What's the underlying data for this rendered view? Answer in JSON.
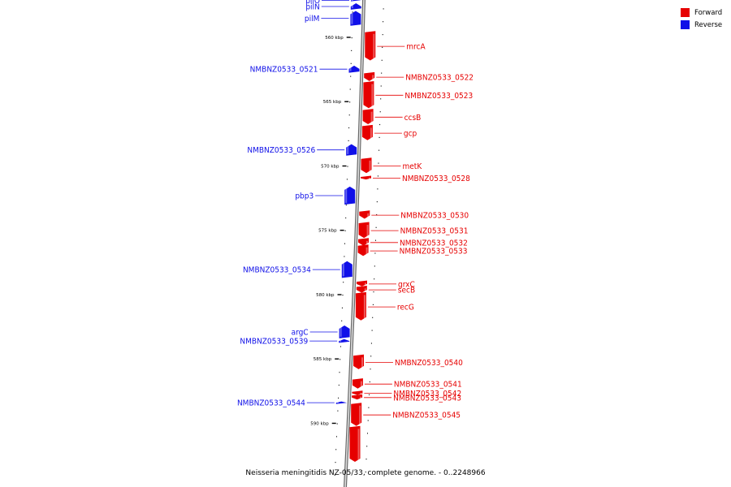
{
  "colors": {
    "forward": "#e60000",
    "reverse": "#1010e8",
    "backbone": "#888888"
  },
  "legend": [
    {
      "label": "Forward",
      "color": "#e60000"
    },
    {
      "label": "Reverse",
      "color": "#1010e8"
    }
  ],
  "caption": "Neisseria meningitidis NZ-05/33, complete genome. - 0..2248966",
  "ticks": [
    {
      "kbp": 560,
      "label": "560 kbp"
    },
    {
      "kbp": 565,
      "label": "565 kbp"
    },
    {
      "kbp": 570,
      "label": "570 kbp"
    },
    {
      "kbp": 575,
      "label": "575 kbp"
    },
    {
      "kbp": 580,
      "label": "580 kbp"
    },
    {
      "kbp": 585,
      "label": "585 kbp"
    },
    {
      "kbp": 590,
      "label": "590 kbp"
    }
  ],
  "genes": [
    {
      "name": "pilO",
      "strand": "-",
      "start": 557.05,
      "end": 557.2,
      "labelled": true
    },
    {
      "name": "pilN",
      "strand": "-",
      "start": 557.35,
      "end": 557.85,
      "labelled": true
    },
    {
      "name": "pilM",
      "strand": "-",
      "start": 557.95,
      "end": 559.1,
      "labelled": true
    },
    {
      "name": "mrcA",
      "strand": "+",
      "start": 559.6,
      "end": 561.8,
      "labelled": true
    },
    {
      "name": "NMBNZ0533_0521",
      "strand": "-",
      "start": 562.2,
      "end": 562.75,
      "labelled": true
    },
    {
      "name": "NMBNZ0533_0522",
      "strand": "+",
      "start": 562.8,
      "end": 563.4,
      "labelled": true
    },
    {
      "name": "NMBNZ0533_0523",
      "strand": "+",
      "start": 563.5,
      "end": 565.5,
      "labelled": true
    },
    {
      "name": "ccsB",
      "strand": "+",
      "start": 565.65,
      "end": 566.75,
      "labelled": true
    },
    {
      "name": "gcp",
      "strand": "+",
      "start": 566.9,
      "end": 568.0,
      "labelled": true
    },
    {
      "name": "NMBNZ0533_0526",
      "strand": "-",
      "start": 568.3,
      "end": 569.2,
      "labelled": true
    },
    {
      "name": "metK",
      "strand": "+",
      "start": 569.45,
      "end": 570.55,
      "labelled": true
    },
    {
      "name": "NMBNZ0533_0528",
      "strand": "+",
      "start": 570.85,
      "end": 571.05,
      "labelled": true
    },
    {
      "name": "pbp3",
      "strand": "-",
      "start": 571.6,
      "end": 573.0,
      "labelled": true
    },
    {
      "name": "NMBNZ0533_0530",
      "strand": "+",
      "start": 573.55,
      "end": 574.1,
      "labelled": true
    },
    {
      "name": "NMBNZ0533_0531",
      "strand": "+",
      "start": 574.45,
      "end": 575.6,
      "labelled": true
    },
    {
      "name": "NMBNZ0533_0532",
      "strand": "+",
      "start": 575.7,
      "end": 576.2,
      "labelled": true
    },
    {
      "name": "NMBNZ0533_0533",
      "strand": "+",
      "start": 576.2,
      "end": 577.0,
      "labelled": true
    },
    {
      "name": "NMBNZ0533_0534",
      "strand": "-",
      "start": 577.4,
      "end": 578.7,
      "labelled": true
    },
    {
      "name": "grxC",
      "strand": "+",
      "start": 579.0,
      "end": 579.35,
      "labelled": true
    },
    {
      "name": "secB",
      "strand": "+",
      "start": 579.4,
      "end": 579.85,
      "labelled": true
    },
    {
      "name": "recG",
      "strand": "+",
      "start": 579.9,
      "end": 582.0,
      "labelled": true
    },
    {
      "name": "argC",
      "strand": "-",
      "start": 582.4,
      "end": 583.4,
      "labelled": true
    },
    {
      "name": "NMBNZ0533_0539",
      "strand": "-",
      "start": 583.45,
      "end": 583.75,
      "labelled": true
    },
    {
      "name": "NMBNZ0533_0540",
      "strand": "+",
      "start": 584.75,
      "end": 585.8,
      "labelled": true
    },
    {
      "name": "NMBNZ0533_0541",
      "strand": "+",
      "start": 586.6,
      "end": 587.3,
      "labelled": true
    },
    {
      "name": "NMBNZ0533_0542",
      "strand": "+",
      "start": 587.55,
      "end": 587.8,
      "labelled": true
    },
    {
      "name": "NMBNZ0533_0543",
      "strand": "+",
      "start": 587.85,
      "end": 588.15,
      "labelled": true
    },
    {
      "name": "NMBNZ0533_0544",
      "strand": "-",
      "start": 588.3,
      "end": 588.5,
      "labelled": true
    },
    {
      "name": "NMBNZ0533_0545",
      "strand": "+",
      "start": 588.5,
      "end": 590.2,
      "labelled": true
    },
    {
      "name": "",
      "strand": "+",
      "start": 590.3,
      "end": 593.0,
      "labelled": false
    }
  ]
}
